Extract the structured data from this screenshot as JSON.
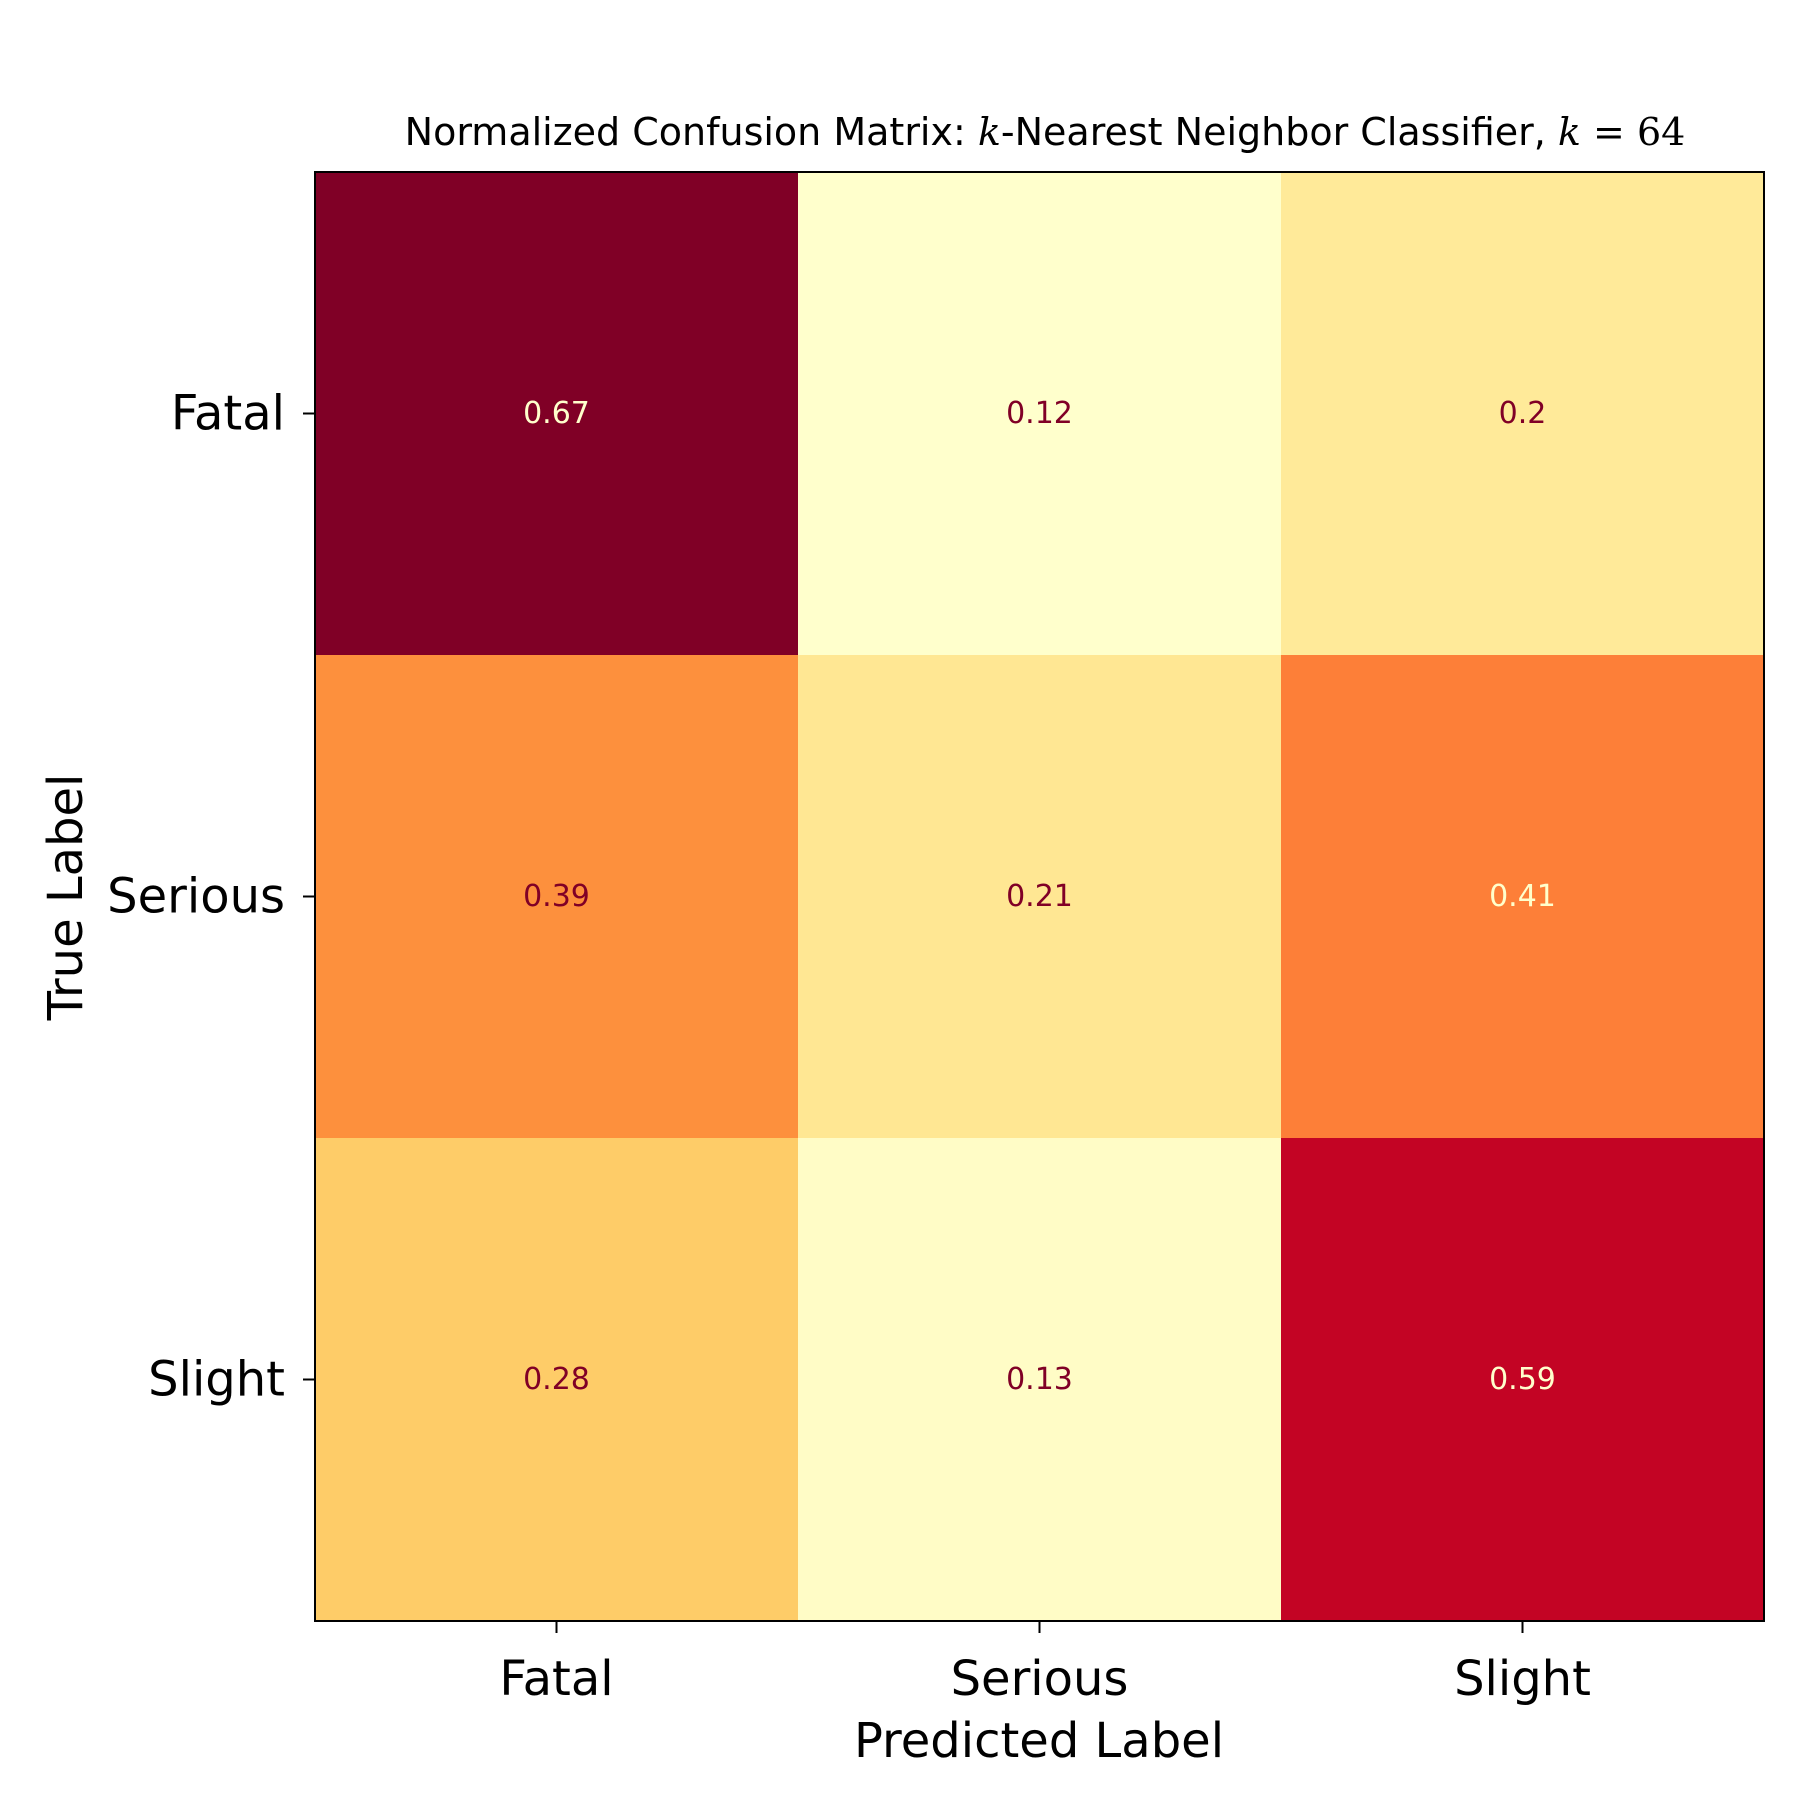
{
  "chart_data": {
    "type": "heatmap",
    "title": {
      "prefix": "Normalized Confusion Matrix: ",
      "k_symbol": "k",
      "middle": "-Nearest Neighbor Classifier, ",
      "k_equals": "k",
      "equals": " = ",
      "k_value": "64"
    },
    "xlabel": "Predicted Label",
    "ylabel": "True Label",
    "x_categories": [
      "Fatal",
      "Serious",
      "Slight"
    ],
    "y_categories": [
      "Fatal",
      "Serious",
      "Slight"
    ],
    "values": [
      [
        0.67,
        0.12,
        0.2
      ],
      [
        0.39,
        0.21,
        0.41
      ],
      [
        0.28,
        0.13,
        0.59
      ]
    ],
    "labels": [
      [
        "0.67",
        "0.12",
        "0.2"
      ],
      [
        "0.39",
        "0.21",
        "0.41"
      ],
      [
        "0.28",
        "0.13",
        "0.59"
      ]
    ],
    "colormap": "YlOrRd",
    "colors": {
      "dark_text": "#800026",
      "light_text": "#ffffcc"
    }
  }
}
